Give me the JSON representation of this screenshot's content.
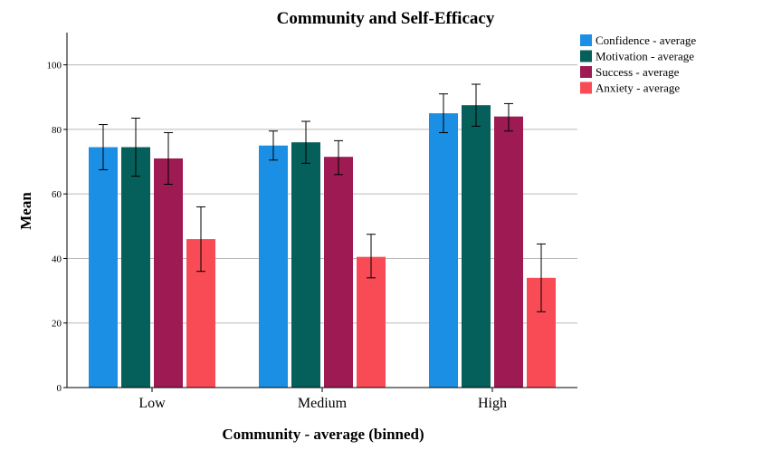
{
  "chart_data": {
    "type": "bar",
    "title": "Community and Self-Efficacy",
    "xlabel": "Community - average (binned)",
    "ylabel": "Mean",
    "categories": [
      "Low",
      "Medium",
      "High"
    ],
    "ylim": [
      0,
      110
    ],
    "yticks": [
      0,
      20,
      40,
      60,
      80,
      100
    ],
    "grid": true,
    "legend_position": "top-right",
    "series": [
      {
        "name": "Confidence - average",
        "color": "#1a8fe3",
        "values": [
          74.5,
          75,
          85
        ],
        "error_low": [
          67.5,
          70.5,
          79
        ],
        "error_high": [
          81.5,
          79.5,
          91
        ]
      },
      {
        "name": "Motivation - average",
        "color": "#055f5b",
        "values": [
          74.5,
          76,
          87.5
        ],
        "error_low": [
          65.5,
          69.5,
          81
        ],
        "error_high": [
          83.5,
          82.5,
          94
        ]
      },
      {
        "name": "Success - average",
        "color": "#9d1a52",
        "values": [
          71,
          71.5,
          84
        ],
        "error_low": [
          63,
          66,
          79.5
        ],
        "error_high": [
          79,
          76.5,
          88
        ]
      },
      {
        "name": "Anxiety - average",
        "color": "#f94b55",
        "values": [
          46,
          40.5,
          34
        ],
        "error_low": [
          36,
          34,
          23.5
        ],
        "error_high": [
          56,
          47.5,
          44.5
        ]
      }
    ]
  }
}
